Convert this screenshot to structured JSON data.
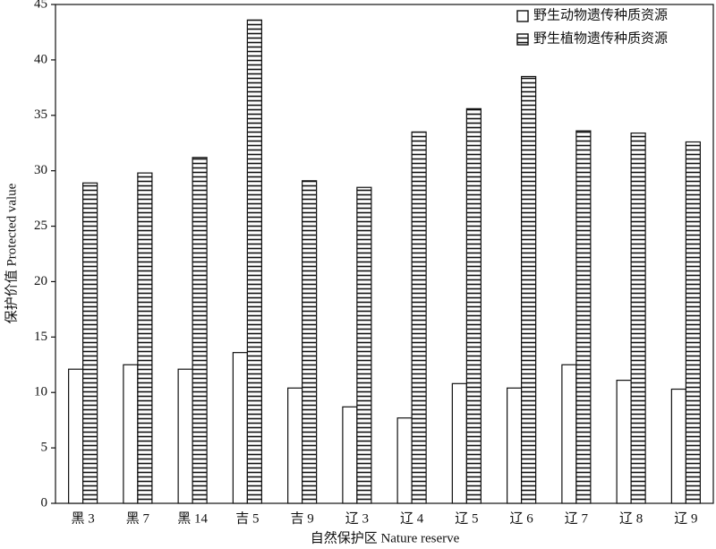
{
  "chart_data": {
    "type": "bar",
    "x_label": "自然保护区 Nature reserve",
    "y_label": "保护价值 Protected value",
    "categories": [
      "黑 3",
      "黑 7",
      "黑 14",
      "吉 5",
      "吉 9",
      "辽 3",
      "辽 4",
      "辽 5",
      "辽 6",
      "辽 7",
      "辽 8",
      "辽 9"
    ],
    "series": [
      {
        "name": "野生动物遗传种质资源",
        "color": "#ffffff",
        "values": [
          12.1,
          12.5,
          12.1,
          13.6,
          10.4,
          8.7,
          7.7,
          10.8,
          10.4,
          12.5,
          11.1,
          10.3
        ]
      },
      {
        "name": "野生植物遗传种质资源",
        "color": "#ffffff",
        "hatch": "horizontal",
        "values": [
          28.9,
          29.8,
          31.2,
          43.6,
          29.1,
          28.5,
          33.5,
          35.6,
          38.5,
          33.6,
          33.4,
          32.6
        ]
      }
    ],
    "ylim": [
      0,
      45
    ],
    "yticks": [
      0,
      5,
      10,
      15,
      20,
      25,
      30,
      35,
      40,
      45
    ],
    "grid": false,
    "legend": "upper right"
  }
}
